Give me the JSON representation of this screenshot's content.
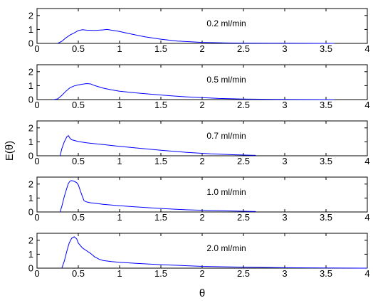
{
  "figure": {
    "ylabel": "E(θ)",
    "xlabel": "θ"
  },
  "chart_data": [
    {
      "type": "line",
      "annotation": "0.2 ml/min",
      "xlim": [
        0,
        4
      ],
      "ylim": [
        0,
        2.5
      ],
      "x_ticks": [
        "0",
        "0.5",
        "1",
        "1.5",
        "2",
        "2.5",
        "3",
        "3.5",
        "4"
      ],
      "y_ticks": [
        "0",
        "1",
        "2"
      ],
      "grid": false,
      "series": [
        {
          "color": "#0000ff",
          "x": [
            0.25,
            0.3,
            0.35,
            0.4,
            0.45,
            0.5,
            0.55,
            0.6,
            0.7,
            0.8,
            0.85,
            0.9,
            1.0,
            1.1,
            1.2,
            1.3,
            1.5,
            1.7,
            2.0,
            2.3,
            2.5,
            3.0,
            3.5,
            3.6
          ],
          "y": [
            0.0,
            0.15,
            0.4,
            0.6,
            0.75,
            0.92,
            0.98,
            0.95,
            0.93,
            0.97,
            1.0,
            0.95,
            0.85,
            0.72,
            0.6,
            0.48,
            0.3,
            0.17,
            0.07,
            0.03,
            0.02,
            0.01,
            0.0,
            0.0
          ]
        }
      ]
    },
    {
      "type": "line",
      "annotation": "0.5 ml/min",
      "xlim": [
        0,
        4
      ],
      "ylim": [
        0,
        2.5
      ],
      "x_ticks": [
        "0",
        "0.5",
        "1",
        "1.5",
        "2",
        "2.5",
        "3",
        "3.5",
        "4"
      ],
      "y_ticks": [
        "0",
        "1",
        "2"
      ],
      "grid": false,
      "series": [
        {
          "color": "#0000ff",
          "x": [
            0.2,
            0.25,
            0.3,
            0.35,
            0.4,
            0.45,
            0.5,
            0.55,
            0.6,
            0.65,
            0.7,
            0.8,
            0.9,
            1.0,
            1.2,
            1.4,
            1.6,
            1.8,
            2.0,
            2.2,
            2.5,
            3.0,
            3.5,
            3.6
          ],
          "y": [
            0.0,
            0.05,
            0.3,
            0.6,
            0.85,
            0.98,
            1.05,
            1.1,
            1.15,
            1.12,
            1.0,
            0.82,
            0.7,
            0.6,
            0.48,
            0.38,
            0.28,
            0.2,
            0.14,
            0.08,
            0.04,
            0.01,
            0.0,
            0.0
          ]
        }
      ]
    },
    {
      "type": "line",
      "annotation": "0.7 ml/min",
      "xlim": [
        0,
        4
      ],
      "ylim": [
        0,
        2.5
      ],
      "x_ticks": [
        "0",
        "0.5",
        "1",
        "1.5",
        "2",
        "2.5",
        "3",
        "3.5",
        "4"
      ],
      "y_ticks": [
        "0",
        "1",
        "2"
      ],
      "grid": false,
      "series": [
        {
          "color": "#0000ff",
          "x": [
            0.28,
            0.3,
            0.33,
            0.36,
            0.38,
            0.4,
            0.42,
            0.45,
            0.5,
            0.6,
            0.8,
            1.0,
            1.2,
            1.5,
            1.8,
            2.1,
            2.4,
            2.6,
            2.65
          ],
          "y": [
            0.0,
            0.5,
            1.0,
            1.35,
            1.45,
            1.25,
            1.15,
            1.1,
            1.02,
            0.93,
            0.8,
            0.68,
            0.56,
            0.4,
            0.25,
            0.14,
            0.07,
            0.04,
            0.03
          ]
        }
      ]
    },
    {
      "type": "line",
      "annotation": "1.0 ml/min",
      "xlim": [
        0,
        4
      ],
      "ylim": [
        0,
        2.5
      ],
      "x_ticks": [
        "0",
        "0.5",
        "1",
        "1.5",
        "2",
        "2.5",
        "3",
        "3.5",
        "4"
      ],
      "y_ticks": [
        "0",
        "1",
        "2"
      ],
      "grid": false,
      "series": [
        {
          "color": "#0000ff",
          "x": [
            0.28,
            0.3,
            0.33,
            0.36,
            0.38,
            0.4,
            0.42,
            0.45,
            0.48,
            0.5,
            0.52,
            0.55,
            0.57,
            0.6,
            0.65,
            0.7,
            0.8,
            1.0,
            1.2,
            1.5,
            1.8,
            2.1,
            2.4,
            2.6,
            2.65
          ],
          "y": [
            0.0,
            0.4,
            1.1,
            1.7,
            2.05,
            2.22,
            2.25,
            2.2,
            2.1,
            1.95,
            1.6,
            1.1,
            0.8,
            0.72,
            0.66,
            0.62,
            0.55,
            0.45,
            0.36,
            0.25,
            0.16,
            0.1,
            0.06,
            0.04,
            0.03
          ]
        }
      ]
    },
    {
      "type": "line",
      "annotation": "2.0 ml/min",
      "xlim": [
        0,
        4
      ],
      "ylim": [
        0,
        2.5
      ],
      "x_ticks": [
        "0",
        "0.5",
        "1",
        "1.5",
        "2",
        "2.5",
        "3",
        "3.5",
        "4"
      ],
      "y_ticks": [
        "0",
        "1",
        "2"
      ],
      "grid": false,
      "series": [
        {
          "color": "#0000ff",
          "x": [
            0.3,
            0.33,
            0.36,
            0.39,
            0.42,
            0.45,
            0.48,
            0.5,
            0.55,
            0.6,
            0.65,
            0.7,
            0.75,
            0.8,
            0.9,
            1.0,
            1.2,
            1.5,
            2.0,
            2.5,
            3.0,
            3.5,
            4.0
          ],
          "y": [
            0.0,
            0.5,
            1.2,
            1.8,
            2.15,
            2.25,
            2.1,
            1.8,
            1.45,
            1.25,
            1.05,
            0.8,
            0.65,
            0.55,
            0.47,
            0.42,
            0.34,
            0.25,
            0.13,
            0.07,
            0.03,
            0.01,
            0.0
          ]
        }
      ]
    }
  ]
}
